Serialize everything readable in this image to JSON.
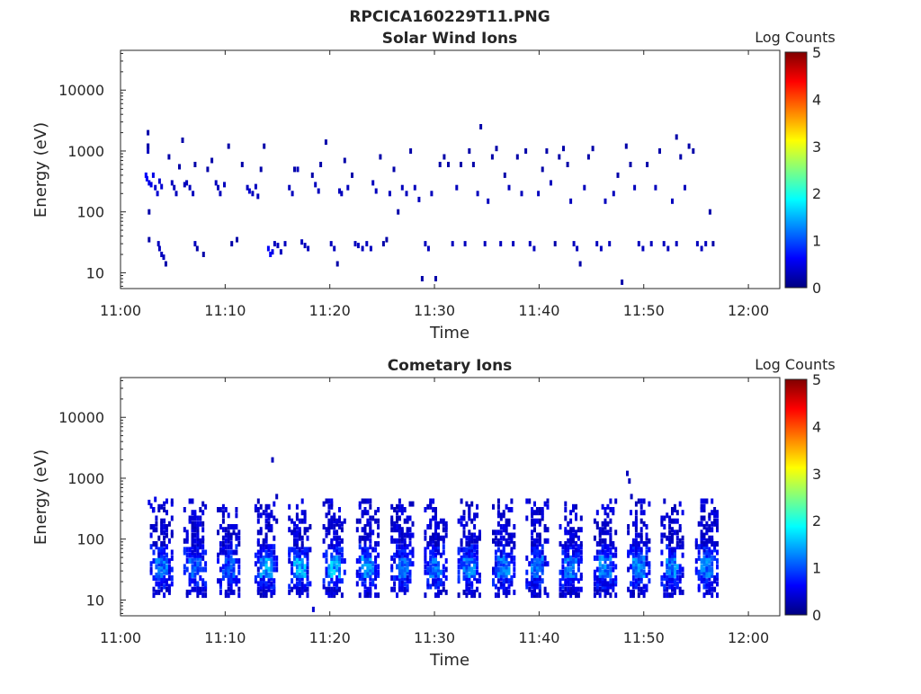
{
  "figure": {
    "suptitle": "RPCICA160229T11.PNG",
    "colormap_stops": [
      "#000080",
      "#0000ff",
      "#0080ff",
      "#00ffff",
      "#80ff80",
      "#ffff00",
      "#ff8000",
      "#ff0000",
      "#800000"
    ]
  },
  "chart_data": [
    {
      "type": "heatmap",
      "title": "Solar Wind Ions",
      "xlabel": "Time",
      "ylabel": "Energy (eV)",
      "yscale": "log",
      "xticks": [
        "11:00",
        "11:10",
        "11:20",
        "11:30",
        "11:40",
        "11:50",
        "12:00"
      ],
      "xlim_minutes": [
        0,
        63
      ],
      "yticks": [
        "10",
        "100",
        "1000",
        "10000"
      ],
      "ylim": [
        5.5,
        45000
      ],
      "colorbar": {
        "label": "Log Counts",
        "ticks": [
          "0",
          "1",
          "2",
          "3",
          "4",
          "5"
        ],
        "range": [
          0,
          5
        ]
      },
      "description": "sparse low-count detections, mostly log counts 0-1",
      "points": [
        [
          2.5,
          1200,
          0.2
        ],
        [
          2.3,
          400,
          0.6
        ],
        [
          2.4,
          350,
          0.6
        ],
        [
          2.6,
          300,
          0.5
        ],
        [
          2.8,
          280,
          0.5
        ],
        [
          3.0,
          400,
          0.5
        ],
        [
          3.2,
          250,
          0.4
        ],
        [
          3.4,
          200,
          0.4
        ],
        [
          3.6,
          320,
          0.4
        ],
        [
          3.8,
          260,
          0.4
        ],
        [
          2.5,
          1200,
          0.2
        ],
        [
          2.5,
          1000,
          0.3
        ],
        [
          2.5,
          2000,
          0.2
        ],
        [
          2.6,
          100,
          0.2
        ],
        [
          2.6,
          35,
          0.2
        ],
        [
          3.5,
          30,
          0.3
        ],
        [
          3.6,
          25,
          0.3
        ],
        [
          3.8,
          20,
          0.3
        ],
        [
          4.0,
          18,
          0.3
        ],
        [
          4.2,
          14,
          0.2
        ],
        [
          4.5,
          800,
          0.2
        ],
        [
          4.8,
          300,
          0.3
        ],
        [
          5.0,
          250,
          0.3
        ],
        [
          5.2,
          200,
          0.3
        ],
        [
          5.5,
          550,
          0.2
        ],
        [
          5.8,
          1500,
          0.2
        ],
        [
          6.0,
          280,
          0.3
        ],
        [
          6.2,
          300,
          0.3
        ],
        [
          6.5,
          250,
          0.3
        ],
        [
          6.8,
          200,
          0.3
        ],
        [
          7.0,
          30,
          0.3
        ],
        [
          7.2,
          25,
          0.2
        ],
        [
          7.8,
          20,
          0.2
        ],
        [
          7.0,
          600,
          0.2
        ],
        [
          8.2,
          500,
          0.2
        ],
        [
          8.6,
          700,
          0.2
        ],
        [
          9.0,
          300,
          0.3
        ],
        [
          9.2,
          250,
          0.3
        ],
        [
          9.4,
          200,
          0.3
        ],
        [
          9.8,
          280,
          0.3
        ],
        [
          10.5,
          30,
          0.2
        ],
        [
          11.0,
          35,
          0.2
        ],
        [
          10.2,
          1200,
          0.2
        ],
        [
          11.5,
          600,
          0.2
        ],
        [
          12.0,
          250,
          0.3
        ],
        [
          12.2,
          220,
          0.4
        ],
        [
          12.5,
          200,
          0.3
        ],
        [
          12.8,
          260,
          0.3
        ],
        [
          13.0,
          180,
          0.3
        ],
        [
          13.3,
          500,
          0.2
        ],
        [
          13.6,
          1200,
          0.2
        ],
        [
          14.0,
          25,
          0.6
        ],
        [
          14.2,
          20,
          0.6
        ],
        [
          14.4,
          22,
          0.5
        ],
        [
          14.6,
          30,
          0.3
        ],
        [
          14.9,
          28,
          0.3
        ],
        [
          15.2,
          22,
          0.3
        ],
        [
          15.6,
          30,
          0.3
        ],
        [
          16.0,
          250,
          0.3
        ],
        [
          16.3,
          200,
          0.3
        ],
        [
          16.5,
          500,
          0.2
        ],
        [
          16.8,
          500,
          0.3
        ],
        [
          17.2,
          32,
          0.3
        ],
        [
          17.5,
          28,
          0.3
        ],
        [
          17.8,
          25,
          0.3
        ],
        [
          18.2,
          400,
          0.2
        ],
        [
          18.5,
          280,
          0.3
        ],
        [
          18.8,
          220,
          0.3
        ],
        [
          19.0,
          600,
          0.2
        ],
        [
          19.5,
          1400,
          0.2
        ],
        [
          20.0,
          30,
          0.3
        ],
        [
          20.3,
          25,
          0.3
        ],
        [
          20.6,
          14,
          0.2
        ],
        [
          20.8,
          220,
          0.3
        ],
        [
          21.0,
          200,
          0.3
        ],
        [
          21.3,
          700,
          0.2
        ],
        [
          21.6,
          250,
          0.3
        ],
        [
          22.0,
          400,
          0.2
        ],
        [
          22.3,
          30,
          0.3
        ],
        [
          22.6,
          28,
          0.3
        ],
        [
          23.0,
          25,
          0.3
        ],
        [
          23.4,
          30,
          0.3
        ],
        [
          23.8,
          25,
          0.3
        ],
        [
          24.0,
          300,
          0.3
        ],
        [
          24.3,
          220,
          0.3
        ],
        [
          24.7,
          800,
          0.2
        ],
        [
          25.0,
          30,
          0.2
        ],
        [
          25.3,
          35,
          0.2
        ],
        [
          25.6,
          200,
          0.3
        ],
        [
          26.0,
          500,
          0.2
        ],
        [
          26.4,
          100,
          0.2
        ],
        [
          26.8,
          250,
          0.3
        ],
        [
          27.2,
          200,
          0.3
        ],
        [
          27.6,
          1000,
          0.2
        ],
        [
          28.0,
          250,
          0.3
        ],
        [
          28.4,
          160,
          0.3
        ],
        [
          28.7,
          8,
          0.2
        ],
        [
          29.0,
          30,
          0.3
        ],
        [
          29.3,
          25,
          0.3
        ],
        [
          29.6,
          200,
          0.3
        ],
        [
          30.0,
          8,
          0.2
        ],
        [
          30.4,
          600,
          0.2
        ],
        [
          30.8,
          800,
          0.2
        ],
        [
          31.2,
          600,
          0.2
        ],
        [
          31.6,
          30,
          0.3
        ],
        [
          32.0,
          250,
          0.3
        ],
        [
          32.4,
          600,
          0.2
        ],
        [
          32.8,
          30,
          0.3
        ],
        [
          33.2,
          1000,
          0.2
        ],
        [
          33.6,
          600,
          0.2
        ],
        [
          34.0,
          200,
          0.3
        ],
        [
          34.3,
          2500,
          0.2
        ],
        [
          34.7,
          30,
          0.3
        ],
        [
          35.0,
          150,
          0.3
        ],
        [
          35.4,
          800,
          0.2
        ],
        [
          35.8,
          1100,
          0.2
        ],
        [
          36.2,
          30,
          0.3
        ],
        [
          36.6,
          400,
          0.2
        ],
        [
          37.0,
          250,
          0.3
        ],
        [
          37.4,
          30,
          0.3
        ],
        [
          37.8,
          800,
          0.2
        ],
        [
          38.2,
          200,
          0.3
        ],
        [
          38.6,
          1000,
          0.2
        ],
        [
          39.0,
          30,
          0.3
        ],
        [
          39.4,
          25,
          0.3
        ],
        [
          39.8,
          200,
          0.3
        ],
        [
          40.2,
          500,
          0.2
        ],
        [
          40.6,
          1000,
          0.2
        ],
        [
          41.0,
          300,
          0.3
        ],
        [
          41.4,
          30,
          0.2
        ],
        [
          41.8,
          800,
          0.2
        ],
        [
          42.2,
          1100,
          0.2
        ],
        [
          42.6,
          600,
          0.2
        ],
        [
          42.9,
          150,
          0.3
        ],
        [
          43.2,
          30,
          0.3
        ],
        [
          43.5,
          25,
          0.3
        ],
        [
          43.8,
          14,
          0.2
        ],
        [
          44.2,
          250,
          0.3
        ],
        [
          44.6,
          800,
          0.2
        ],
        [
          45.0,
          1100,
          0.2
        ],
        [
          45.4,
          30,
          0.3
        ],
        [
          45.8,
          25,
          0.3
        ],
        [
          46.2,
          150,
          0.3
        ],
        [
          46.6,
          30,
          0.3
        ],
        [
          47.0,
          200,
          0.3
        ],
        [
          47.4,
          400,
          0.2
        ],
        [
          47.8,
          7,
          0.2
        ],
        [
          48.2,
          1200,
          0.2
        ],
        [
          48.6,
          600,
          0.2
        ],
        [
          49.0,
          250,
          0.3
        ],
        [
          49.4,
          30,
          0.3
        ],
        [
          49.8,
          25,
          0.3
        ],
        [
          50.2,
          600,
          0.2
        ],
        [
          50.6,
          30,
          0.3
        ],
        [
          51.0,
          250,
          0.3
        ],
        [
          51.4,
          1000,
          0.2
        ],
        [
          51.8,
          30,
          0.3
        ],
        [
          52.2,
          25,
          0.3
        ],
        [
          52.6,
          150,
          0.3
        ],
        [
          53.0,
          30,
          0.3
        ],
        [
          53.4,
          800,
          0.2
        ],
        [
          53.8,
          250,
          0.3
        ],
        [
          54.2,
          1200,
          0.2
        ],
        [
          54.6,
          1000,
          0.2
        ],
        [
          55.0,
          30,
          0.3
        ],
        [
          55.4,
          25,
          0.3
        ],
        [
          55.8,
          30,
          0.3
        ],
        [
          56.2,
          100,
          0.2
        ],
        [
          56.5,
          30,
          0.2
        ],
        [
          53.0,
          1700,
          0.2
        ]
      ]
    },
    {
      "type": "heatmap",
      "title": "Cometary Ions",
      "xlabel": "Time",
      "ylabel": "Energy (eV)",
      "yscale": "log",
      "xticks": [
        "11:00",
        "11:10",
        "11:20",
        "11:30",
        "11:40",
        "11:50",
        "12:00"
      ],
      "xlim_minutes": [
        0,
        63
      ],
      "yticks": [
        "10",
        "100",
        "1000",
        "10000"
      ],
      "ylim": [
        5.5,
        45000
      ],
      "colorbar": {
        "label": "Log Counts",
        "ticks": [
          "0",
          "1",
          "2",
          "3",
          "4",
          "5"
        ],
        "range": [
          0,
          5
        ]
      },
      "description": "periodic bursts roughly every 3 minutes between ~12 and ~400 eV, peaking near 30-40 eV at log counts up to ~1.8",
      "burst_centers_minutes": [
        3.8,
        7.0,
        10.2,
        13.8,
        17.0,
        20.3,
        23.5,
        26.8,
        30.0,
        33.2,
        36.5,
        39.7,
        42.9,
        46.2,
        49.4,
        52.6,
        55.9
      ],
      "burst_peak_log_counts": [
        1.4,
        1.3,
        1.2,
        1.7,
        1.8,
        1.8,
        1.6,
        1.4,
        1.4,
        1.5,
        1.5,
        1.4,
        1.4,
        1.5,
        1.6,
        1.5,
        1.5
      ],
      "extra_points": [
        [
          14.4,
          2000,
          0.3
        ],
        [
          14.8,
          500,
          0.3
        ],
        [
          18.3,
          7,
          0.4
        ],
        [
          48.3,
          1200,
          0.3
        ],
        [
          48.5,
          900,
          0.3
        ],
        [
          48.7,
          500,
          0.3
        ],
        [
          2.6,
          400,
          0.5
        ],
        [
          2.8,
          350,
          0.5
        ],
        [
          3.0,
          300,
          0.5
        ],
        [
          3.2,
          450,
          0.5
        ]
      ]
    }
  ]
}
